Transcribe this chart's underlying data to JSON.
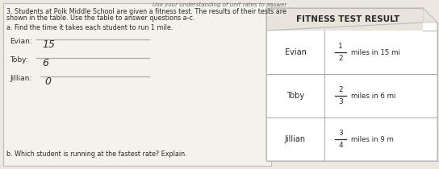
{
  "title_line1": "Use your understanding of unit rates to answer",
  "problem_text_line1": "3. Students at Polk Middle School are given a fitness test. The results of their tests are",
  "problem_text_line2": "shown in the table. Use the table to answer questions a-c.",
  "part_a_text": "a. Find the time it takes each student to run 1 mile.",
  "evian_label": "Evian:",
  "evian_answer": "15",
  "toby_label": "Toby:",
  "toby_answer": "6",
  "jillian_label": "Jillian:",
  "jillian_answer": "0",
  "part_b_text": "b. Which student is running at the fastest rate? Explain.",
  "table_header": "FITNESS TEST RESULT",
  "table_col1": [
    "Evian",
    "Toby",
    "Jillian"
  ],
  "table_col2_num": [
    "1/2",
    "2/3",
    "3/4"
  ],
  "table_col2_suffix": [
    "miles in 15 mi",
    "miles in 6 mi",
    "miles in 9 m"
  ],
  "bg_color": "#ede8df",
  "page_bg": "#f5f2ec",
  "table_bg": "#ffffff",
  "header_bg": "#e8e4dc",
  "text_color": "#2a2a2a",
  "light_text": "#666666",
  "line_color": "#aaaaaa",
  "border_color": "#bbbbbb"
}
